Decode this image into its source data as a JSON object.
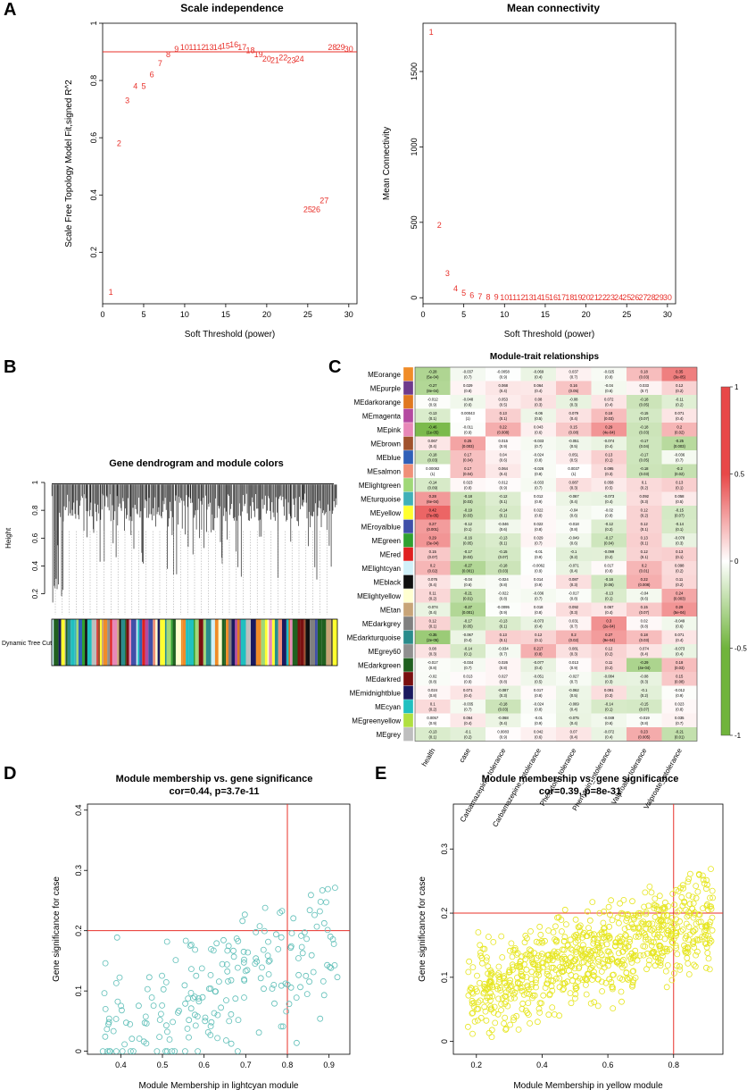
{
  "panels": {
    "A": "A",
    "B": "B",
    "C": "C",
    "D": "D",
    "E": "E"
  },
  "scale_independence": {
    "title": "Scale independence",
    "xlabel": "Soft Threshold (power)",
    "ylabel": "Scale Free Topology Model Fit,signed R^2",
    "type": "scatter-text",
    "xlim": [
      0,
      31
    ],
    "ylim": [
      0.02,
      1.0
    ],
    "xticks": [
      0,
      5,
      10,
      15,
      20,
      25,
      30
    ],
    "yticks": [
      0.2,
      0.4,
      0.6,
      0.8,
      1.0
    ],
    "hline": 0.9,
    "powers": [
      1,
      2,
      3,
      4,
      5,
      6,
      7,
      8,
      9,
      10,
      11,
      12,
      13,
      14,
      15,
      16,
      17,
      18,
      19,
      20,
      21,
      22,
      23,
      24,
      25,
      26,
      27,
      28,
      29,
      30
    ],
    "values": [
      0.06,
      0.58,
      0.73,
      0.78,
      0.78,
      0.82,
      0.86,
      0.89,
      0.91,
      0.915,
      0.915,
      0.915,
      0.915,
      0.915,
      0.92,
      0.925,
      0.915,
      0.905,
      0.89,
      0.875,
      0.87,
      0.88,
      0.87,
      0.875,
      0.35,
      0.35,
      0.38,
      0.915,
      0.915,
      0.91
    ]
  },
  "mean_connectivity": {
    "title": "Mean connectivity",
    "xlabel": "Soft Threshold (power)",
    "ylabel": "Mean Connectivity",
    "type": "scatter-text",
    "xlim": [
      0,
      31
    ],
    "ylim": [
      -40,
      1820
    ],
    "xticks": [
      0,
      5,
      10,
      15,
      20,
      25,
      30
    ],
    "yticks": [
      0,
      500,
      1000,
      1500
    ],
    "powers": [
      1,
      2,
      3,
      4,
      5,
      6,
      7,
      8,
      9,
      10,
      11,
      12,
      13,
      14,
      15,
      16,
      17,
      18,
      19,
      20,
      21,
      22,
      23,
      24,
      25,
      26,
      27,
      28,
      29,
      30
    ],
    "values": [
      1760,
      480,
      160,
      60,
      30,
      15,
      8,
      5,
      3,
      2,
      1,
      1,
      1,
      0,
      0,
      0,
      0,
      0,
      0,
      0,
      0,
      0,
      0,
      0,
      0,
      0,
      0,
      0,
      0,
      0
    ]
  },
  "dendrogram": {
    "title": "Gene dendrogram and module colors",
    "ylabel": "Height",
    "yticks": [
      0.2,
      0.4,
      0.6,
      0.8,
      1.0
    ],
    "track_label": "Dynamic Tree Cut"
  },
  "heatmap": {
    "title": "Module-trait relationships",
    "type": "heatmap",
    "traits": [
      "health",
      "case",
      "Carbamazepine_tolerance",
      "Carbamazepine_intolerance",
      "Phenytoin_tolerance",
      "Phenytoin_intolerance",
      "Valproate_tolerance",
      "Valproate_intolerance"
    ],
    "modules": [
      "MEorange",
      "MEpurple",
      "MEdarkorange",
      "MEmagenta",
      "MEpink",
      "MEbrown",
      "MEblue",
      "MEsalmon",
      "MElightgreen",
      "MEturquoise",
      "MEyellow",
      "MEroyalblue",
      "MEgreen",
      "MEred",
      "MElightcyan",
      "MEblack",
      "MElightyellow",
      "MEtan",
      "MEdarkgrey",
      "MEdarkturquoise",
      "MEgrey60",
      "MEdarkgreen",
      "MEdarkred",
      "MEmidnightblue",
      "MEcyan",
      "MEgreenyellow",
      "MEgrey"
    ],
    "module_colors": [
      "#f08c28",
      "#6e3a8c",
      "#e07820",
      "#b44aa0",
      "#e888b8",
      "#a0522d",
      "#3060b8",
      "#f09078",
      "#a0d878",
      "#40b0b8",
      "#ffff30",
      "#4050a8",
      "#30a030",
      "#e02020",
      "#d0f0f8",
      "#101010",
      "#ffffd0",
      "#c8a478",
      "#808080",
      "#2a8c8c",
      "#909090",
      "#206020",
      "#7a1010",
      "#1a1a60",
      "#20c0c0",
      "#b0e040",
      "#bebebe"
    ],
    "colorbar_ticks": [
      "1",
      "0.5",
      "0",
      "-0.5",
      "-1"
    ],
    "values": [
      [
        -0.28,
        -0.037,
        -0.0058,
        -0.069,
        0.037,
        -0.025,
        0.18,
        0.35
      ],
      [
        -0.27,
        0.029,
        0.068,
        0.064,
        0.16,
        -0.04,
        0.033,
        0.12
      ],
      [
        -0.012,
        -0.048,
        0.053,
        0.08,
        -0.08,
        0.072,
        -0.18,
        -0.11
      ],
      [
        -0.13,
        0.00043,
        0.13,
        -0.06,
        0.079,
        0.18,
        -0.15,
        0.071
      ],
      [
        -0.46,
        -0.011,
        0.22,
        0.043,
        0.15,
        0.29,
        -0.18,
        0.2
      ],
      [
        0.067,
        0.25,
        0.015,
        -0.033,
        -0.051,
        -0.074,
        -0.17,
        -0.25
      ],
      [
        -0.18,
        0.17,
        0.04,
        -0.024,
        0.051,
        0.13,
        -0.17,
        -0.036
      ],
      [
        0.00082,
        0.17,
        0.064,
        -0.026,
        0.0037,
        0.095,
        -0.18,
        -0.2
      ],
      [
        -0.14,
        0.023,
        0.012,
        -0.033,
        0.087,
        0.058,
        0.1,
        0.13
      ],
      [
        0.28,
        -0.18,
        -0.12,
        0.012,
        -0.067,
        -0.073,
        0.092,
        0.058
      ],
      [
        0.42,
        -0.19,
        -0.14,
        0.022,
        -0.04,
        -0.02,
        0.12,
        -0.15
      ],
      [
        0.27,
        -0.12,
        -0.046,
        0.022,
        -0.018,
        -0.12,
        0.12,
        -0.14
      ],
      [
        0.29,
        -0.16,
        -0.13,
        0.029,
        -0.049,
        -0.17,
        0.13,
        -0.078
      ],
      [
        0.15,
        -0.17,
        -0.15,
        -0.01,
        -0.1,
        -0.099,
        0.12,
        0.13
      ],
      [
        0.2,
        -0.27,
        -0.18,
        -0.0062,
        -0.071,
        0.017,
        0.2,
        0.098
      ],
      [
        0.076,
        -0.04,
        -0.024,
        0.014,
        0.087,
        -0.16,
        0.22,
        0.11
      ],
      [
        0.11,
        -0.21,
        -0.022,
        -0.036,
        -0.017,
        -0.13,
        -0.04,
        0.24
      ],
      [
        -0.074,
        -0.27,
        -0.0095,
        0.018,
        0.092,
        0.067,
        0.15,
        0.29
      ],
      [
        0.12,
        -0.17,
        -0.13,
        -0.073,
        0.031,
        0.3,
        0.02,
        -0.049
      ],
      [
        -0.35,
        -0.067,
        0.13,
        0.12,
        0.2,
        0.27,
        0.18,
        0.071
      ],
      [
        0.08,
        -0.14,
        -0.034,
        0.217,
        0.081,
        0.12,
        0.074,
        -0.073
      ],
      [
        -0.017,
        -0.034,
        0.026,
        -0.077,
        0.013,
        0.11,
        -0.29,
        0.18
      ],
      [
        -0.02,
        0.013,
        0.027,
        -0.051,
        -0.027,
        -0.084,
        -0.08,
        0.15
      ],
      [
        0.024,
        0.071,
        -0.087,
        0.017,
        -0.062,
        0.091,
        -0.1,
        -0.012
      ],
      [
        0.1,
        -0.035,
        -0.18,
        -0.024,
        -0.069,
        -0.14,
        -0.15,
        0.023
      ],
      [
        0.0057,
        0.064,
        -0.068,
        -0.01,
        -0.075,
        -0.049,
        -0.019,
        0.035
      ],
      [
        -0.13,
        -0.1,
        0.0083,
        0.042,
        0.07,
        -0.072,
        0.23,
        -0.21
      ]
    ],
    "pvalues": [
      [
        "(5e-04)",
        "(0.7)",
        "(0.9)",
        "(0.4)",
        "(0.7)",
        "(0.8)",
        "(0.03)",
        "(3e-05)"
      ],
      [
        "(8e-04)",
        "(0.8)",
        "(0.4)",
        "(0.4)",
        "(0.05)",
        "(0.6)",
        "(0.7)",
        "(0.2)"
      ],
      [
        "(0.9)",
        "(0.6)",
        "(0.5)",
        "(0.3)",
        "(0.3)",
        "(0.4)",
        "(0.05)",
        "(0.2)"
      ],
      [
        "(0.1)",
        "(1)",
        "(0.1)",
        "(0.5)",
        "(0.4)",
        "(0.03)",
        "(0.07)",
        "(0.4)"
      ],
      [
        "(1e-05)",
        "(0.9)",
        "(0.008)",
        "(0.6)",
        "(0.08)",
        "(4e-04)",
        "(0.03)",
        "(0.02)"
      ],
      [
        "(0.4)",
        "(0.003)",
        "(0.9)",
        "(0.7)",
        "(0.5)",
        "(0.4)",
        "(0.04)",
        "(0.003)"
      ],
      [
        "(0.03)",
        "(0.04)",
        "(0.6)",
        "(0.8)",
        "(0.5)",
        "(0.1)",
        "(0.05)",
        "(0.7)"
      ],
      [
        "(1)",
        "(0.04)",
        "(0.4)",
        "(0.8)",
        "(1)",
        "(0.3)",
        "(0.03)",
        "(0.02)"
      ],
      [
        "(0.09)",
        "(0.8)",
        "(0.9)",
        "(0.7)",
        "(0.3)",
        "(0.5)",
        "(0.2)",
        "(0.1)"
      ],
      [
        "(6e-04)",
        "(0.03)",
        "(0.1)",
        "(0.9)",
        "(0.4)",
        "(0.4)",
        "(0.3)",
        "(0.5)"
      ],
      [
        "(7e-05)",
        "(0.03)",
        "(0.1)",
        "(0.8)",
        "(0.6)",
        "(0.8)",
        "(0.2)",
        "(0.07)"
      ],
      [
        "(0.001)",
        "(0.1)",
        "(0.6)",
        "(0.8)",
        "(0.8)",
        "(0.2)",
        "(0.1)",
        "(0.1)"
      ],
      [
        "(3e-04)",
        "(0.05)",
        "(0.1)",
        "(0.7)",
        "(0.6)",
        "(0.04)",
        "(0.1)",
        "(0.3)"
      ],
      [
        "(0.07)",
        "(0.03)",
        "(0.07)",
        "(0.9)",
        "(0.2)",
        "(0.2)",
        "(0.1)",
        "(0.1)"
      ],
      [
        "(0.02)",
        "(0.001)",
        "(0.03)",
        "(0.9)",
        "(0.4)",
        "(0.8)",
        "(0.01)",
        "(0.2)"
      ],
      [
        "(0.4)",
        "(0.6)",
        "(0.8)",
        "(0.9)",
        "(0.3)",
        "(0.06)",
        "(0.008)",
        "(0.2)"
      ],
      [
        "(0.2)",
        "(0.01)",
        "(0.8)",
        "(0.7)",
        "(0.8)",
        "(0.1)",
        "(0.6)",
        "(0.003)"
      ],
      [
        "(0.4)",
        "(0.001)",
        "(0.9)",
        "(0.8)",
        "(0.3)",
        "(0.4)",
        "(0.07)",
        "(5e-04)"
      ],
      [
        "(0.1)",
        "(0.05)",
        "(0.1)",
        "(0.4)",
        "(0.7)",
        "(2e-04)",
        "(0.8)",
        "(0.6)"
      ],
      [
        "(2e-05)",
        "(0.4)",
        "(0.1)",
        "(0.1)",
        "(0.02)",
        "(9e-04)",
        "(0.03)",
        "(0.4)"
      ],
      [
        "(0.3)",
        "(0.1)",
        "(0.7)",
        "(0.8)",
        "(0.3)",
        "(0.2)",
        "(0.4)",
        "(0.4)"
      ],
      [
        "(0.8)",
        "(0.7)",
        "(0.8)",
        "(0.4)",
        "(0.9)",
        "(0.2)",
        "(4e-04)",
        "(0.03)"
      ],
      [
        "(0.8)",
        "(0.9)",
        "(0.8)",
        "(0.5)",
        "(0.7)",
        "(0.3)",
        "(0.3)",
        "(0.08)"
      ],
      [
        "(0.8)",
        "(0.4)",
        "(0.3)",
        "(0.8)",
        "(0.5)",
        "(0.3)",
        "(0.2)",
        "(0.9)"
      ],
      [
        "(0.2)",
        "(0.7)",
        "(0.03)",
        "(0.8)",
        "(0.4)",
        "(0.1)",
        "(0.07)",
        "(0.8)"
      ],
      [
        "(0.9)",
        "(0.4)",
        "(0.4)",
        "(0.9)",
        "(0.4)",
        "(0.6)",
        "(0.8)",
        "(0.7)"
      ],
      [
        "(0.1)",
        "(0.2)",
        "(0.9)",
        "(0.6)",
        "(0.4)",
        "(0.4)",
        "(0.005)",
        "(0.01)"
      ]
    ]
  },
  "mm_gs_lightcyan": {
    "title": "Module membership vs. gene significance",
    "subtitle": "cor=0.44, p=3.7e-11",
    "xlabel": "Module Membership in lightcyan module",
    "ylabel": "Gene significance for  case",
    "type": "scatter",
    "xlim": [
      0.32,
      0.95
    ],
    "ylim": [
      -0.005,
      0.41
    ],
    "xticks": [
      0.4,
      0.5,
      0.6,
      0.7,
      0.8,
      0.9
    ],
    "yticks": [
      0.0,
      0.1,
      0.2,
      0.3,
      0.4
    ],
    "vline": 0.8,
    "hline": 0.2,
    "point_color": "#5fbfb8",
    "n_points": 210,
    "seed": 11
  },
  "mm_gs_yellow": {
    "title": "Module membership vs. gene significance",
    "subtitle": "cor=0.39, p=8e-31",
    "xlabel": "Module Membership in yellow module",
    "ylabel": "Gene significance for  case",
    "type": "scatter",
    "xlim": [
      0.13,
      0.95
    ],
    "ylim": [
      -0.02,
      0.37
    ],
    "xticks": [
      0.2,
      0.4,
      0.6,
      0.8
    ],
    "yticks": [
      0.0,
      0.1,
      0.2,
      0.3
    ],
    "vline": 0.8,
    "hline": 0.2,
    "point_color": "#e6e620",
    "n_points": 820,
    "seed": 23
  }
}
